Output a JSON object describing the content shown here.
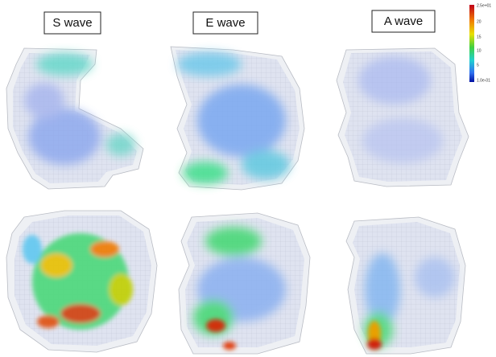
{
  "panels": [
    {
      "label": "S wave"
    },
    {
      "label": "E wave"
    },
    {
      "label": "A wave"
    }
  ],
  "colorbar": {
    "ticks": [
      "2.5e+01",
      "20",
      "15",
      "10",
      "5",
      "1.0e-01"
    ]
  }
}
